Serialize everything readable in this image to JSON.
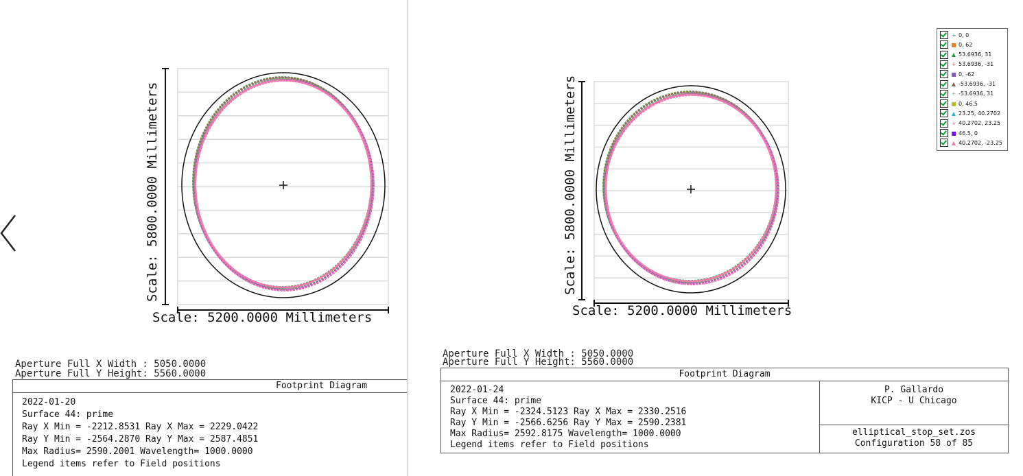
{
  "colors": {
    "grid": "#dadada",
    "axis": "#111111",
    "stop_ellipse": "#111111",
    "footprint_palette": [
      "#2fa6a6",
      "#e07f20",
      "#1fa339",
      "#e04a4a",
      "#8e5bbd",
      "#8c5a4a",
      "#9aa0a6",
      "#b8b82a",
      "#26b8c9",
      "#f06a8a",
      "#7a10e8",
      "#f07ab0"
    ]
  },
  "icons": {
    "nav": "chevron-left-icon",
    "center": "crosshair-icon",
    "checkbox": "checkbox-checked-icon"
  },
  "left": {
    "y_scale_label": "Scale: 5800.0000 Millimeters",
    "x_scale_label": "Scale: 5200.0000 Millimeters",
    "aperture_x": "Aperture Full X Width : 5050.0000",
    "aperture_y": "Aperture Full Y Height: 5560.0000",
    "box_title": "Footprint Diagram",
    "lines": [
      "2022-01-20",
      "Surface 44: prime",
      "Ray X Min = -2212.8531 Ray X Max = 2229.0422",
      "Ray Y Min = -2564.2870 Ray Y Max = 2587.4851",
      "Max Radius= 2590.2001 Wavelength= 1000.0000",
      "Legend items refer to Field positions"
    ]
  },
  "right": {
    "y_scale_label": "Scale: 5800.0000 Millimeters",
    "x_scale_label": "Scale: 5200.0000 Millimeters",
    "aperture_x": "Aperture Full X Width : 5050.0000",
    "aperture_y": "Aperture Full Y Height: 5560.0000",
    "box_title": "Footprint Diagram",
    "lines": [
      "2022-01-24",
      "Surface 44: prime",
      "Ray X Min = -2324.5123 Ray X Max = 2330.2516",
      "Ray Y Min = -2566.6256 Ray Y Max = 2590.2381",
      "Max Radius= 2592.8175 Wavelength= 1000.0000",
      "Legend items refer to Field positions"
    ],
    "author": "P. Gallardo",
    "org": "KICP - U Chicago",
    "file": "elliptical_stop_set.zos",
    "config": "Configuration 58 of 85",
    "legend": [
      {
        "label": "0, 0",
        "marker": "+",
        "color": "#2fa6a6"
      },
      {
        "label": "0, 62",
        "marker": "■",
        "color": "#e07f20"
      },
      {
        "label": "53.6936, 31",
        "marker": "▲",
        "color": "#1fa339"
      },
      {
        "label": "53.6936, -31",
        "marker": "+",
        "color": "#e04a4a"
      },
      {
        "label": "0, -62",
        "marker": "■",
        "color": "#8e5bbd"
      },
      {
        "label": "-53.6936, -31",
        "marker": "▲",
        "color": "#8c5a4a"
      },
      {
        "label": "-53.6936, 31",
        "marker": "+",
        "color": "#9aa0a6"
      },
      {
        "label": "0, 46.5",
        "marker": "■",
        "color": "#b8b82a"
      },
      {
        "label": "23.25, 40.2702",
        "marker": "▲",
        "color": "#26b8c9"
      },
      {
        "label": "40.2702, 23.25",
        "marker": "+",
        "color": "#f06a8a"
      },
      {
        "label": "46.5, 0",
        "marker": "■",
        "color": "#7a10e8"
      },
      {
        "label": "40.2702, -23.25",
        "marker": "▲",
        "color": "#f07ab0"
      }
    ]
  }
}
